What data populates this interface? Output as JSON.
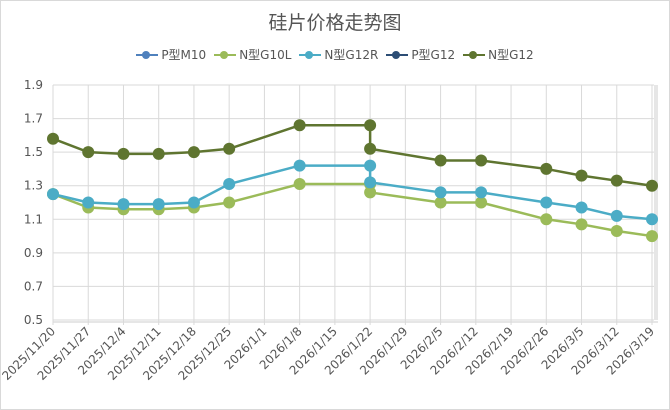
{
  "chart_data": {
    "type": "line",
    "title": "硅片价格走势图",
    "xlabel": "",
    "ylabel": "",
    "ylim": [
      0.5,
      1.9
    ],
    "yticks": [
      "1.9",
      "1.7",
      "1.5",
      "1.3",
      "1.1",
      "0.9",
      "0.7",
      "0.5"
    ],
    "grid": true,
    "legend_position": "top",
    "x_ticks": [
      "2025/11/20",
      "2025/11/27",
      "2025/12/4",
      "2025/12/11",
      "2025/12/18",
      "2025/12/25",
      "2026/1/1",
      "2026/1/8",
      "2026/1/15",
      "2026/1/22",
      "2026/1/29",
      "2026/2/5",
      "2026/2/12",
      "2026/2/19",
      "2026/2/26",
      "2026/3/5",
      "2026/3/12",
      "2026/3/19"
    ],
    "x": [
      "2025/11/20",
      "2025/11/27",
      "2025/12/4",
      "2025/12/11",
      "2025/12/18",
      "2025/12/25",
      "2026/1/8",
      "2026/1/22",
      "2026/1/22",
      "2026/2/5",
      "2026/2/13",
      "2026/2/26",
      "2026/3/5",
      "2026/3/12",
      "2026/3/19"
    ],
    "x_index": [
      0,
      1,
      2,
      3,
      4,
      5,
      7,
      9,
      9,
      11,
      12.15,
      14,
      15,
      16,
      17
    ],
    "series": [
      {
        "name": "P型M10",
        "color": "#4f81bd",
        "values": []
      },
      {
        "name": "N型G10L",
        "color": "#9bbb59",
        "values": [
          1.25,
          1.17,
          1.16,
          1.16,
          1.17,
          1.2,
          1.31,
          1.31,
          1.26,
          1.2,
          1.2,
          1.1,
          1.07,
          1.03,
          1.0
        ]
      },
      {
        "name": "N型G12R",
        "color": "#4bacc6",
        "values": [
          1.25,
          1.2,
          1.19,
          1.19,
          1.2,
          1.31,
          1.42,
          1.42,
          1.32,
          1.26,
          1.26,
          1.2,
          1.17,
          1.12,
          1.1
        ]
      },
      {
        "name": "P型G12",
        "color": "#2c4d75",
        "values": []
      },
      {
        "name": "N型G12",
        "color": "#5f7530",
        "values": [
          1.58,
          1.5,
          1.49,
          1.49,
          1.5,
          1.52,
          1.66,
          1.66,
          1.52,
          1.45,
          1.45,
          1.4,
          1.36,
          1.33,
          1.3
        ]
      }
    ]
  }
}
